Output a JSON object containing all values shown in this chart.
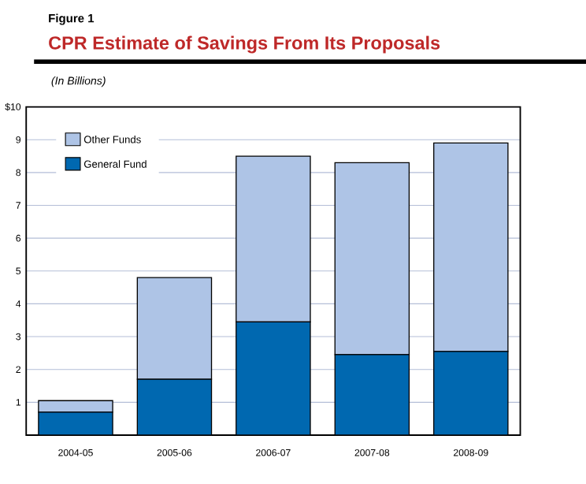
{
  "chart_data": {
    "type": "bar",
    "stacked": true,
    "title": "CPR Estimate of Savings From Its Proposals",
    "ylabel": "(In Billions)",
    "annotations": [
      "Figure 1"
    ],
    "categories": [
      "2004-05",
      "2005-06",
      "2006-07",
      "2007-08",
      "2008-09"
    ],
    "series": [
      {
        "name": "General Fund",
        "color": "#0068b0",
        "values": [
          0.7,
          1.7,
          3.45,
          2.45,
          2.55
        ]
      },
      {
        "name": "Other Funds",
        "color": "#aec4e6",
        "values": [
          0.35,
          3.1,
          5.05,
          5.85,
          6.35
        ]
      }
    ],
    "ylim": [
      0,
      10
    ],
    "yticks": [
      1,
      2,
      3,
      4,
      5,
      6,
      7,
      8,
      9,
      {
        "value": 10,
        "label": "$10"
      }
    ],
    "grid": "y",
    "legend": "top left"
  }
}
